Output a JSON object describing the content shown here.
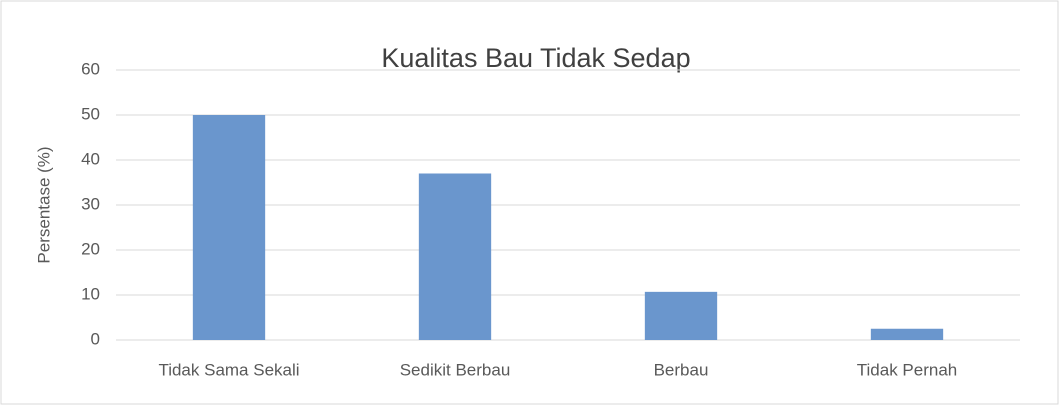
{
  "chart_data": {
    "type": "bar",
    "title": "Kualitas Bau Tidak Sedap",
    "y_label": "Persentase (%)",
    "categories": [
      "Tidak Sama Sekali",
      "Sedikit Berbau",
      "Berbau",
      "Tidak Pernah"
    ],
    "values": [
      50,
      37,
      10.7,
      2.5
    ],
    "color": "#6a96cd",
    "ylim": [
      0,
      60
    ],
    "yticks": [
      0,
      10,
      20,
      30,
      40,
      50,
      60
    ],
    "grid": true
  }
}
